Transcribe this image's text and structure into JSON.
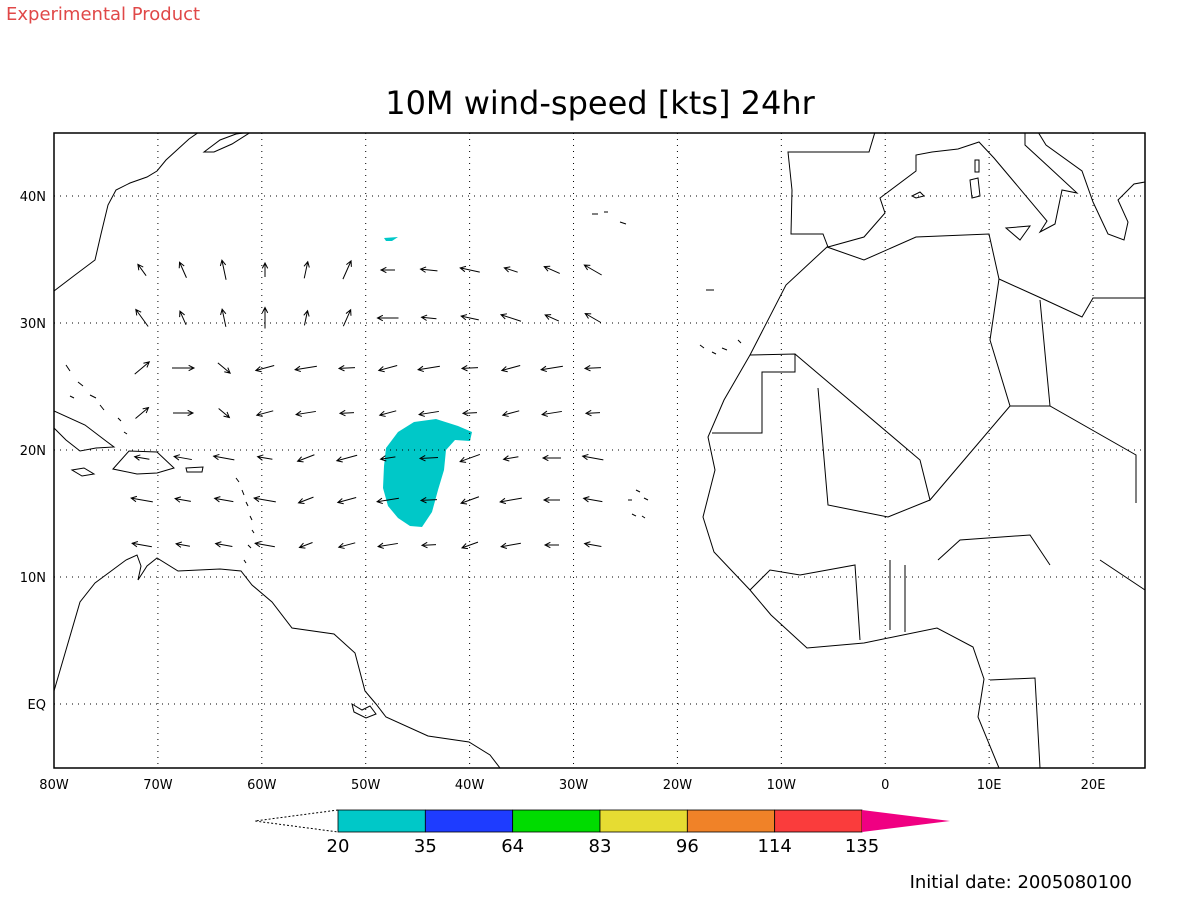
{
  "header": {
    "note": "Experimental Product",
    "title": "10M wind-speed [kts] 24hr"
  },
  "map": {
    "lon_labels": [
      "80W",
      "70W",
      "60W",
      "50W",
      "40W",
      "30W",
      "20W",
      "10W",
      "0",
      "10E",
      "20E"
    ],
    "lat_labels": [
      "40N",
      "30N",
      "20N",
      "10N",
      "EQ"
    ]
  },
  "colorbar": {
    "levels": [
      20,
      35,
      64,
      83,
      96,
      114,
      135
    ],
    "colors": [
      "#00c8c8",
      "#1e3cff",
      "#00dc00",
      "#e6dc32",
      "#f08228",
      "#fa3c3c",
      "#f00082"
    ]
  },
  "footer": {
    "initial_date": "Initial date: 2005080100"
  }
}
